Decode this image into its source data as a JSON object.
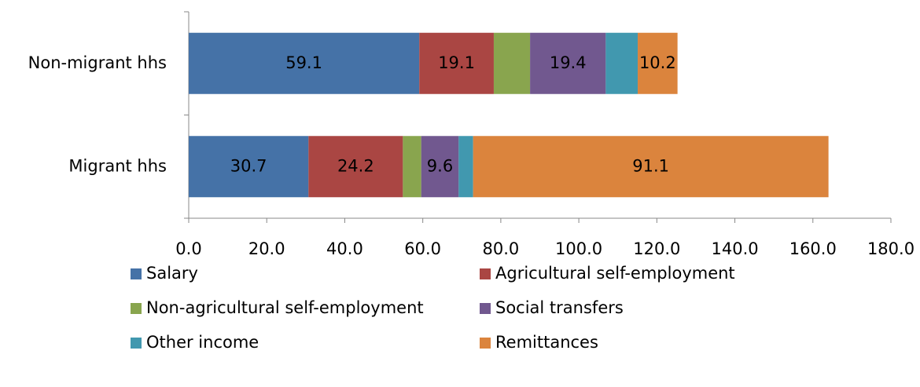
{
  "chart_data": {
    "type": "stacked-bar-horizontal",
    "categories": [
      "Non-migrant hhs",
      "Migrant hhs"
    ],
    "series": [
      {
        "name": "Salary",
        "color": "#4572a7",
        "values": [
          59.1,
          30.7
        ],
        "value_labels": [
          "59.1",
          "30.7"
        ]
      },
      {
        "name": "Agricultural self-employment",
        "color": "#aa4643",
        "values": [
          19.1,
          24.2
        ],
        "value_labels": [
          "19.1",
          "24.2"
        ]
      },
      {
        "name": "Non-agricultural self-employment",
        "color": "#89a54e",
        "values": [
          9.3,
          4.7
        ],
        "value_labels": [
          null,
          null
        ]
      },
      {
        "name": "Social transfers",
        "color": "#71588f",
        "values": [
          19.4,
          9.6
        ],
        "value_labels": [
          "19.4",
          "9.6"
        ]
      },
      {
        "name": "Other income",
        "color": "#4198af",
        "values": [
          8.2,
          3.7
        ],
        "value_labels": [
          null,
          null
        ]
      },
      {
        "name": "Remittances",
        "color": "#db843d",
        "values": [
          10.2,
          91.1
        ],
        "value_labels": [
          "10.2",
          "91.1"
        ]
      }
    ],
    "xlim": [
      0,
      180
    ],
    "xticks": [
      {
        "value": 0,
        "label": "0.0"
      },
      {
        "value": 20,
        "label": "20.0"
      },
      {
        "value": 40,
        "label": "40.0"
      },
      {
        "value": 60,
        "label": "60.0"
      },
      {
        "value": 80,
        "label": "80.0"
      },
      {
        "value": 100,
        "label": "100.0"
      },
      {
        "value": 120,
        "label": "120.0"
      },
      {
        "value": 140,
        "label": "140.0"
      },
      {
        "value": 160,
        "label": "160.0"
      },
      {
        "value": 180,
        "label": "180.0"
      }
    ],
    "grid": false,
    "legend": "bottom"
  }
}
